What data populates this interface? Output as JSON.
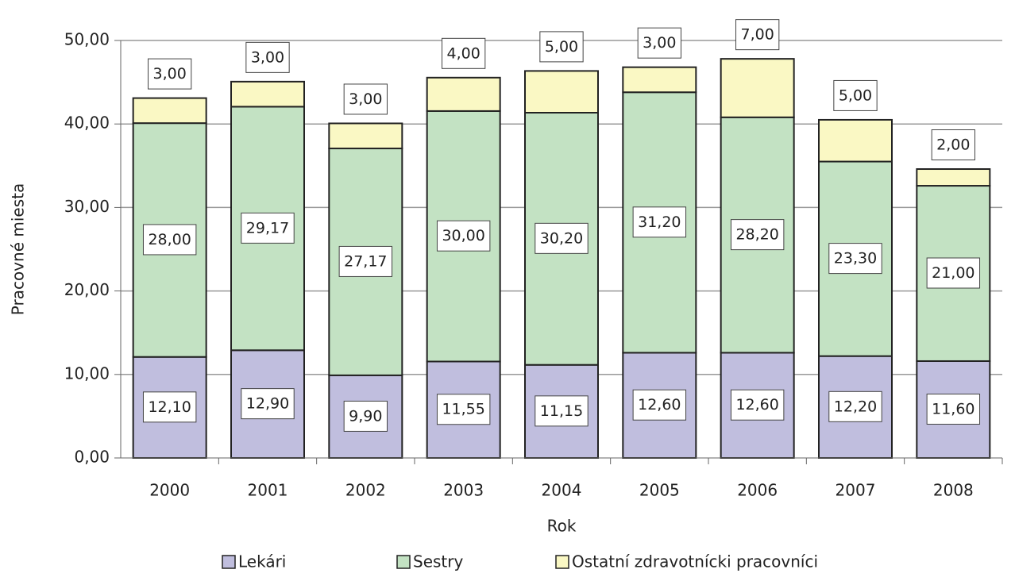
{
  "chart_data": {
    "type": "stacked_bar",
    "x_label": "Rok",
    "y_label": "Pracovné miesta",
    "categories": [
      "2000",
      "2001",
      "2002",
      "2003",
      "2004",
      "2005",
      "2006",
      "2007",
      "2008"
    ],
    "series": [
      {
        "name": "Lekári",
        "color": "#c0bede",
        "values": [
          12.1,
          12.9,
          9.9,
          11.55,
          11.15,
          12.6,
          12.6,
          12.2,
          11.6
        ],
        "value_labels": [
          "12,10",
          "12,90",
          "9,90",
          "11,55",
          "11,15",
          "12,60",
          "12,60",
          "12,20",
          "11,60"
        ]
      },
      {
        "name": "Sestry",
        "color": "#c3e2c3",
        "values": [
          28.0,
          29.17,
          27.17,
          30.0,
          30.2,
          31.2,
          28.2,
          23.3,
          21.0
        ],
        "value_labels": [
          "28,00",
          "29,17",
          "27,17",
          "30,00",
          "30,20",
          "31,20",
          "28,20",
          "23,30",
          "21,00"
        ]
      },
      {
        "name": "Ostatní zdravotnícki pracovníci",
        "color": "#faf8c4",
        "values": [
          3,
          3,
          3,
          4,
          5,
          3,
          7,
          5,
          2
        ],
        "value_labels": [
          "3,00",
          "3,00",
          "3,00",
          "4,00",
          "5,00",
          "3,00",
          "7,00",
          "5,00",
          "2,00"
        ]
      }
    ],
    "ylim": [
      0,
      50
    ],
    "yticks": [
      {
        "value": 0,
        "label": "0,00"
      },
      {
        "value": 10,
        "label": "10,00"
      },
      {
        "value": 20,
        "label": "20,00"
      },
      {
        "value": 30,
        "label": "30,00"
      },
      {
        "value": 40,
        "label": "40,00"
      },
      {
        "value": 50,
        "label": "50,00"
      }
    ],
    "grid": true,
    "legend": "bottom"
  }
}
